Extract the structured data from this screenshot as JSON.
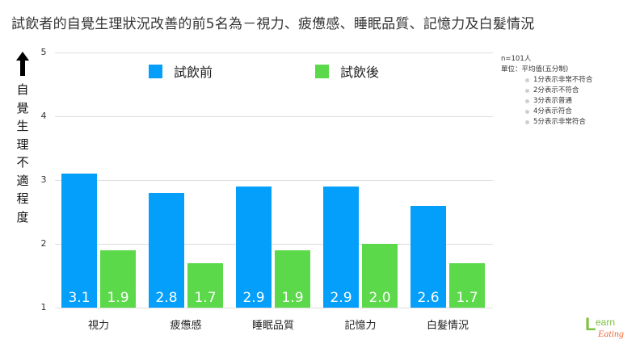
{
  "title": "試飲者的自覺生理狀況改善的前5名為－視力、疲憊感、睡眠品質、記憶力及白髮情況",
  "y_axis_label_chars": [
    "自",
    "覺",
    "生",
    "理",
    "不",
    "適",
    "程",
    "度"
  ],
  "legend": [
    {
      "label": "試飲前",
      "color": "#049ffb"
    },
    {
      "label": "試飲後",
      "color": "#5bd94a"
    }
  ],
  "note": {
    "sample": "n=101人",
    "unit": "單位：平均值(五分制)",
    "scale": [
      "1分表示非常不符合",
      "2分表示不符合",
      "3分表示普通",
      "4分表示符合",
      "5分表示非常符合"
    ]
  },
  "logo": {
    "l": "L",
    "earn": "earn",
    "eating": "Eating"
  },
  "chart_data": {
    "type": "bar",
    "title": "試飲者的自覺生理狀況改善的前5名為－視力、疲憊感、睡眠品質、記憶力及白髮情況",
    "xlabel": "",
    "ylabel": "自覺生理不適程度",
    "ylim": [
      1,
      5
    ],
    "yticks": [
      1,
      2,
      3,
      4,
      5
    ],
    "grid": true,
    "legend_position": "top",
    "categories": [
      "視力",
      "疲憊感",
      "睡眠品質",
      "記憶力",
      "白髮情況"
    ],
    "series": [
      {
        "name": "試飲前",
        "color": "#049ffb",
        "values": [
          3.1,
          2.8,
          2.9,
          2.9,
          2.6
        ],
        "labels": [
          "3.1",
          "2.8",
          "2.9",
          "2.9",
          "2.6"
        ]
      },
      {
        "name": "試飲後",
        "color": "#5bd94a",
        "values": [
          1.9,
          1.7,
          1.9,
          2.0,
          1.7
        ],
        "labels": [
          "1.9",
          "1.7",
          "1.9",
          "2.0",
          "1.7"
        ]
      }
    ]
  }
}
